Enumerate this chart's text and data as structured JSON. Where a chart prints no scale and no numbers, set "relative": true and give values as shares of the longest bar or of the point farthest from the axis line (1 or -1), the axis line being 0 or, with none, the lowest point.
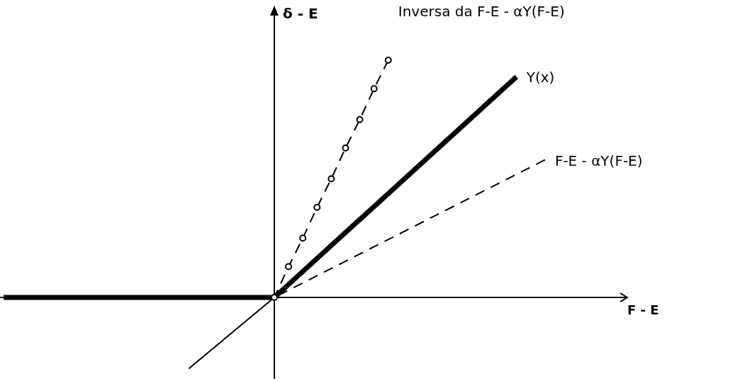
{
  "chart_data": {
    "type": "line",
    "relative": true,
    "xlabel": "F - E",
    "ylabel": "δ - E",
    "legend": false,
    "categories": [
      null,
      null,
      null,
      null,
      null,
      null,
      null,
      null,
      null,
      null,
      null,
      null,
      null,
      null,
      null,
      null,
      null,
      null,
      null,
      null,
      null,
      null,
      null,
      null,
      null,
      null,
      null,
      null,
      null,
      null,
      null,
      null,
      null,
      null,
      null,
      null,
      null,
      null,
      null,
      null,
      null,
      null,
      null,
      null
    ],
    "series": [
      {
        "name": "Y(x)",
        "color": "#000000",
        "line_style": "solid",
        "marker": "none",
        "values": [
          0,
          null,
          null,
          null,
          null,
          null,
          null,
          null,
          null,
          null,
          null,
          null,
          null,
          null,
          null,
          null,
          null,
          null,
          null,
          0,
          null,
          null,
          null,
          null,
          null,
          null,
          null,
          null,
          null,
          null,
          null,
          null,
          null,
          null,
          null,
          null,
          0.93,
          null,
          null,
          null,
          null,
          null,
          null,
          null
        ]
      },
      {
        "color": "#000000",
        "line_style": "solid",
        "marker": "none",
        "values": [
          null,
          null,
          null,
          null,
          null,
          null,
          null,
          null,
          null,
          null,
          null,
          null,
          null,
          -0.3,
          null,
          null,
          null,
          null,
          null,
          0,
          null,
          null,
          null,
          null,
          null,
          null,
          null,
          null,
          null,
          null,
          null,
          null,
          null,
          null,
          null,
          null,
          null,
          null,
          null,
          null,
          null,
          null,
          null,
          null
        ]
      },
      {
        "name": "F-E - αY(F-E)",
        "color": "#000000",
        "line_style": "dashed",
        "marker": "none",
        "values": [
          null,
          null,
          null,
          null,
          null,
          null,
          null,
          null,
          null,
          null,
          null,
          null,
          null,
          null,
          null,
          null,
          null,
          null,
          null,
          0,
          null,
          null,
          null,
          null,
          null,
          null,
          null,
          null,
          null,
          null,
          null,
          null,
          null,
          null,
          null,
          null,
          null,
          null,
          0.58,
          null,
          null,
          null,
          null,
          null
        ]
      },
      {
        "name": "Inversa da F-E - αY(F-E)",
        "color": "#000000",
        "line_style": "dashed",
        "marker": "circle",
        "values": [
          null,
          null,
          null,
          null,
          null,
          null,
          null,
          null,
          null,
          null,
          null,
          null,
          null,
          null,
          null,
          null,
          null,
          null,
          null,
          0,
          0.13,
          0.25,
          0.38,
          0.5,
          0.63,
          0.75,
          0.88,
          1,
          null,
          null,
          null,
          null,
          null,
          null,
          null,
          null,
          null,
          null,
          null,
          null,
          null,
          null,
          null,
          null
        ]
      }
    ]
  }
}
